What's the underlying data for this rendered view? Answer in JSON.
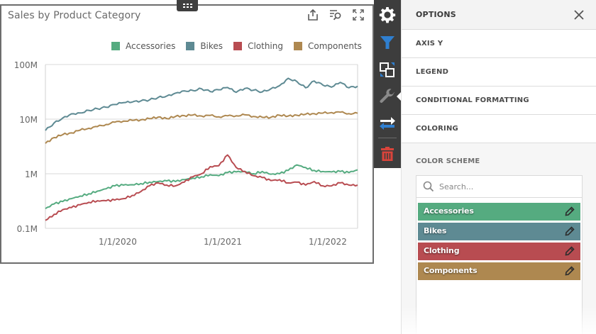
{
  "card": {
    "title": "Sales by Product Category",
    "tools": [
      {
        "name": "export-icon",
        "label": "Export"
      },
      {
        "name": "filter-search-icon",
        "label": "Inspect data"
      },
      {
        "name": "maximize-icon",
        "label": "Maximize"
      }
    ]
  },
  "legend": [
    {
      "label": "Accessories",
      "color": "#55ab80"
    },
    {
      "label": "Bikes",
      "color": "#5e8a93"
    },
    {
      "label": "Clothing",
      "color": "#b84c51"
    },
    {
      "label": "Components",
      "color": "#ae8850"
    }
  ],
  "vtoolbar": [
    {
      "name": "gear-icon",
      "label": "Options",
      "active": false
    },
    {
      "name": "filter-icon",
      "label": "Interactivity",
      "active": false
    },
    {
      "name": "convert-icon",
      "label": "Convert to",
      "active": false
    },
    {
      "name": "wrench-icon",
      "label": "Customize",
      "active": true
    },
    {
      "name": "swap-icon",
      "label": "Transpose",
      "active": false
    },
    {
      "name": "trash-icon",
      "label": "Remove",
      "active": false
    }
  ],
  "panel": {
    "title": "OPTIONS",
    "sections": [
      "AXIS Y",
      "LEGEND",
      "CONDITIONAL FORMATTING",
      "COLORING"
    ],
    "color_scheme_label": "COLOR SCHEME",
    "search_placeholder": "Search...",
    "search_value": "",
    "items": [
      {
        "label": "Accessories",
        "color": "#55ab80"
      },
      {
        "label": "Bikes",
        "color": "#5e8a93"
      },
      {
        "label": "Clothing",
        "color": "#b84c51"
      },
      {
        "label": "Components",
        "color": "#ae8850"
      }
    ]
  },
  "chart_data": {
    "type": "line",
    "title": "Sales by Product Category",
    "xlabel": "",
    "ylabel": "",
    "yscale": "log",
    "ylim": [
      100000,
      100000000
    ],
    "yticks": [
      "0.1M",
      "1M",
      "10M",
      "100M"
    ],
    "xticks": [
      "1/1/2020",
      "1/1/2021",
      "1/1/2022"
    ],
    "grid": true,
    "legend_position": "top-right",
    "x": [
      "2019-04",
      "2019-05",
      "2019-06",
      "2019-07",
      "2019-08",
      "2019-09",
      "2019-10",
      "2019-11",
      "2019-12",
      "2020-01",
      "2020-02",
      "2020-03",
      "2020-04",
      "2020-05",
      "2020-06",
      "2020-07",
      "2020-08",
      "2020-09",
      "2020-10",
      "2020-11",
      "2020-12",
      "2021-01",
      "2021-02",
      "2021-03",
      "2021-04",
      "2021-05",
      "2021-06",
      "2021-07",
      "2021-08",
      "2021-09",
      "2021-10",
      "2021-11",
      "2021-12",
      "2022-01",
      "2022-02",
      "2022-03",
      "2022-04"
    ],
    "series": [
      {
        "name": "Bikes",
        "color": "#5e8a93",
        "values": [
          6.2,
          8.5,
          10.5,
          12.5,
          13.0,
          14.5,
          15.5,
          16.5,
          18.5,
          20.0,
          20.5,
          21.5,
          22.5,
          25.0,
          26.5,
          30.0,
          33.0,
          33.5,
          36.0,
          32.0,
          34.5,
          38.0,
          31.0,
          36.5,
          34.0,
          31.5,
          36.0,
          41.0,
          56.0,
          49.0,
          37.5,
          50.0,
          42.0,
          38.5,
          47.0,
          37.5,
          40.0
        ]
      },
      {
        "name": "Components",
        "color": "#ae8850",
        "values": [
          3.6,
          4.6,
          5.2,
          5.6,
          6.3,
          6.8,
          7.3,
          8.0,
          8.8,
          9.2,
          9.5,
          9.7,
          10.2,
          10.9,
          10.2,
          11.2,
          11.6,
          11.9,
          11.4,
          11.7,
          11.0,
          11.5,
          11.5,
          12.0,
          11.2,
          10.8,
          10.8,
          11.8,
          11.4,
          11.8,
          12.3,
          12.6,
          12.9,
          13.2,
          13.4,
          12.6,
          12.8
        ]
      },
      {
        "name": "Accessories",
        "color": "#55ab80",
        "values": [
          0.23,
          0.28,
          0.31,
          0.35,
          0.39,
          0.43,
          0.48,
          0.53,
          0.6,
          0.62,
          0.63,
          0.66,
          0.7,
          0.72,
          0.74,
          0.72,
          0.78,
          0.83,
          0.88,
          0.96,
          0.92,
          1.05,
          1.08,
          1.1,
          1.0,
          1.1,
          0.98,
          1.0,
          1.15,
          1.45,
          1.3,
          1.15,
          1.1,
          1.08,
          1.1,
          1.05,
          1.18
        ]
      },
      {
        "name": "Clothing",
        "color": "#b84c51",
        "values": [
          0.14,
          0.18,
          0.22,
          0.24,
          0.27,
          0.3,
          0.32,
          0.32,
          0.33,
          0.35,
          0.4,
          0.47,
          0.6,
          0.68,
          0.62,
          0.6,
          0.7,
          0.88,
          1.0,
          1.35,
          1.4,
          2.2,
          1.3,
          1.1,
          0.92,
          0.85,
          0.75,
          0.78,
          0.68,
          0.7,
          0.62,
          0.72,
          0.6,
          0.6,
          0.68,
          0.62,
          0.62
        ]
      }
    ]
  }
}
